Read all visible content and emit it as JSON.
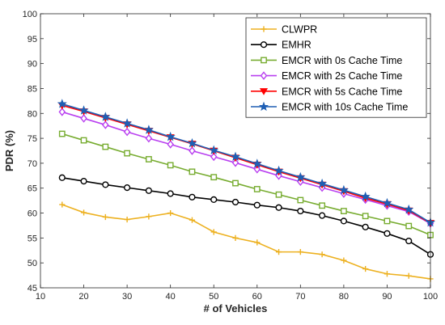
{
  "chart_data": {
    "type": "line",
    "xlabel": "# of Vehicles",
    "ylabel": "PDR (%)",
    "xlim": [
      10,
      100
    ],
    "ylim": [
      45,
      100
    ],
    "xticks": [
      10,
      20,
      30,
      40,
      50,
      60,
      70,
      80,
      90,
      100
    ],
    "yticks": [
      45,
      50,
      55,
      60,
      65,
      70,
      75,
      80,
      85,
      90,
      95,
      100
    ],
    "grid": false,
    "legend_position": "top-right",
    "x": [
      15,
      20,
      25,
      30,
      35,
      40,
      45,
      50,
      55,
      60,
      65,
      70,
      75,
      80,
      85,
      90,
      95,
      100
    ],
    "series": [
      {
        "name": "CLWPR",
        "color": "#EDB120",
        "marker": "plus",
        "values": [
          61.7,
          60.1,
          59.2,
          58.7,
          59.3,
          60.0,
          58.6,
          56.2,
          55.0,
          54.1,
          52.2,
          52.2,
          51.7,
          50.5,
          48.8,
          47.8,
          47.4,
          46.8
        ]
      },
      {
        "name": "EMHR",
        "color": "#000000",
        "marker": "circle",
        "values": [
          67.1,
          66.4,
          65.7,
          65.1,
          64.5,
          63.9,
          63.2,
          62.7,
          62.2,
          61.6,
          61.1,
          60.4,
          59.5,
          58.4,
          57.2,
          55.9,
          54.4,
          51.7
        ]
      },
      {
        "name": "EMCR with 0s Cache Time",
        "color": "#77AC30",
        "marker": "square",
        "values": [
          75.9,
          74.6,
          73.3,
          72.0,
          70.8,
          69.6,
          68.3,
          67.2,
          66.0,
          64.8,
          63.7,
          62.6,
          61.5,
          60.4,
          59.4,
          58.4,
          57.4,
          55.6
        ]
      },
      {
        "name": "EMCR with 2s Cache Time",
        "color": "#B940F0",
        "marker": "diamond",
        "values": [
          80.3,
          79.0,
          77.7,
          76.3,
          75.0,
          73.8,
          72.5,
          71.3,
          70.1,
          68.8,
          67.5,
          66.3,
          65.1,
          63.9,
          62.7,
          61.5,
          60.3,
          57.9
        ]
      },
      {
        "name": "EMCR with 5s Cache Time",
        "color": "#FF0000",
        "marker": "triangle-down",
        "values": [
          81.6,
          80.4,
          79.1,
          77.8,
          76.5,
          75.2,
          73.9,
          72.5,
          71.1,
          69.7,
          68.3,
          67.0,
          65.7,
          64.4,
          63.0,
          61.8,
          60.5,
          58.0
        ]
      },
      {
        "name": "EMCR with 10s Cache Time",
        "color": "#1F5FB4",
        "marker": "star",
        "values": [
          81.9,
          80.6,
          79.3,
          78.0,
          76.7,
          75.3,
          74.0,
          72.6,
          71.3,
          69.9,
          68.5,
          67.2,
          65.9,
          64.6,
          63.3,
          62.0,
          60.7,
          58.1
        ]
      }
    ]
  }
}
